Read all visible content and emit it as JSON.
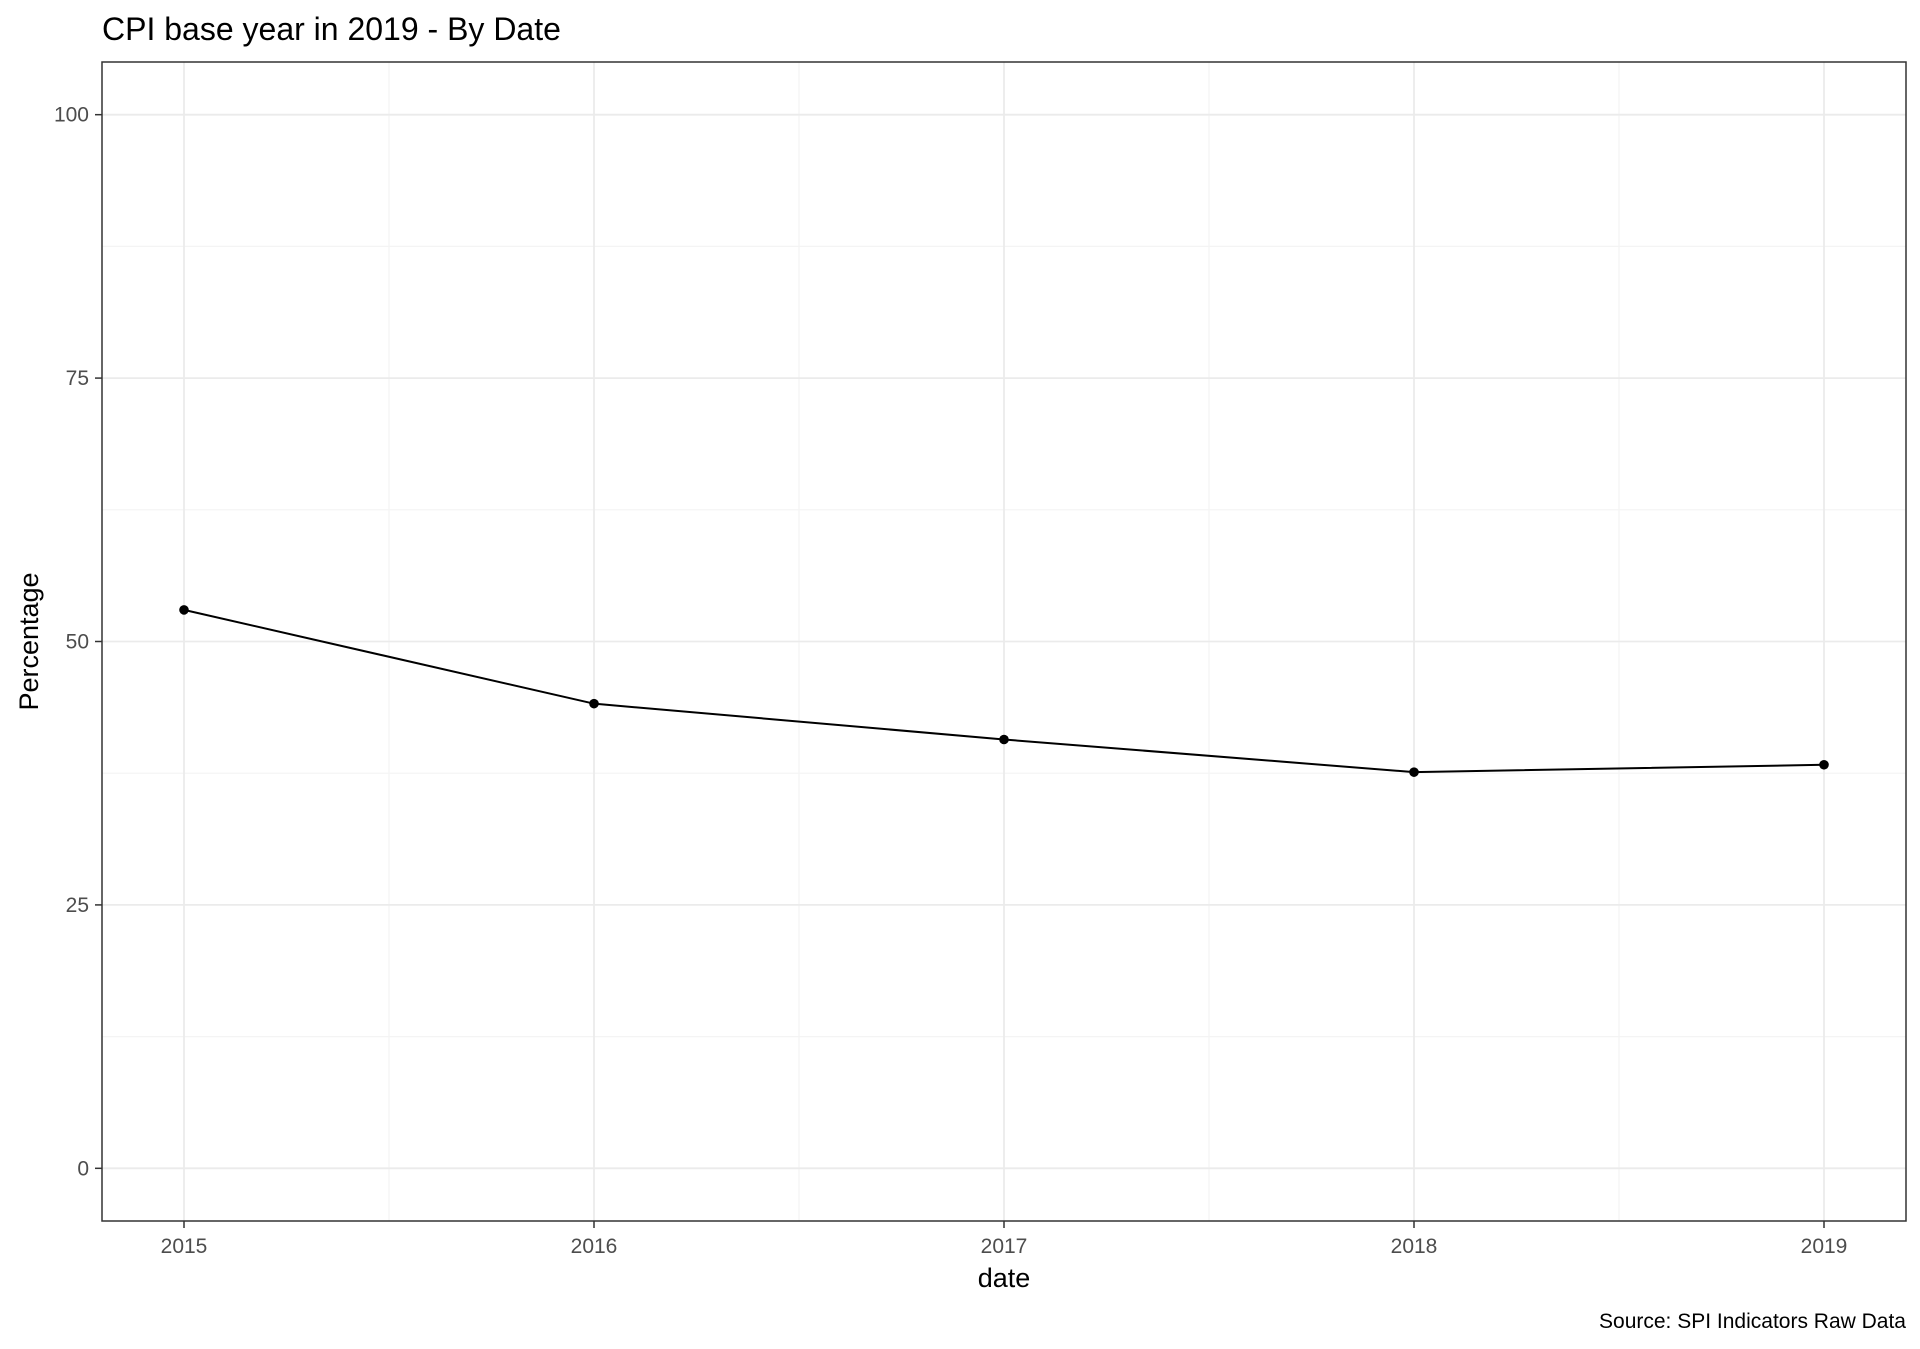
{
  "chart_data": {
    "type": "line",
    "title": "CPI base year in 2019 - By Date",
    "xlabel": "date",
    "ylabel": "Percentage",
    "caption": "Source: SPI Indicators Raw Data",
    "x": [
      2015,
      2016,
      2017,
      2018,
      2019
    ],
    "x_tick_labels": [
      "2015",
      "2016",
      "2017",
      "2018",
      "2019"
    ],
    "y_ticks": [
      0,
      25,
      50,
      75,
      100
    ],
    "y_tick_labels": [
      "0",
      "25",
      "50",
      "75",
      "100"
    ],
    "xlim": [
      2014.8,
      2019.2
    ],
    "ylim": [
      -5,
      105
    ],
    "series": [
      {
        "values": [
          53.0,
          44.1,
          40.7,
          37.6,
          38.3
        ]
      }
    ],
    "grid": true,
    "legend": "none",
    "colors": {
      "line": "#000000",
      "grid_major": "#ebebeb",
      "grid_minor": "#f4f4f4",
      "panel_border": "#333333",
      "tick_text": "#4d4d4d"
    }
  }
}
